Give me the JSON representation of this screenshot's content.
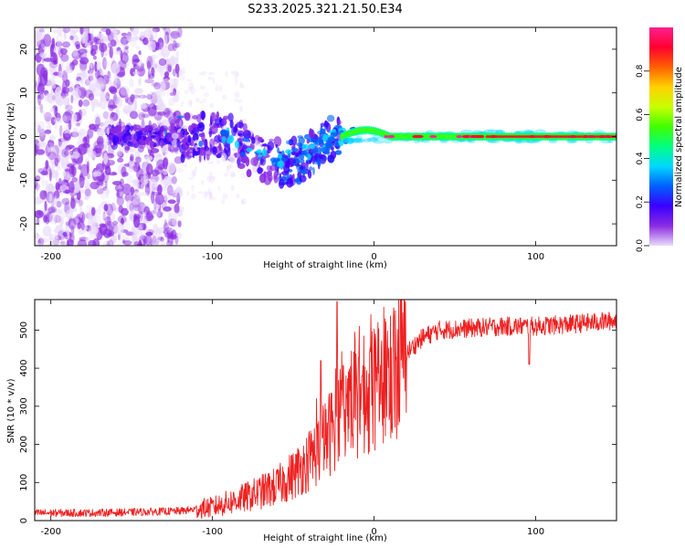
{
  "title": "S233.2025.321.21.50.E34",
  "chart_data": [
    {
      "type": "heatmap",
      "name": "spectrogram",
      "xlabel": "Height of straight line (km)",
      "ylabel": "Frequency (Hz)",
      "xlim": [
        -210,
        150
      ],
      "ylim": [
        -25,
        25
      ],
      "xticks": [
        -200,
        -100,
        0,
        100
      ],
      "xtick_labels": [
        "-200",
        "-100",
        "0",
        "100"
      ],
      "yticks": [
        -20,
        -10,
        0,
        10,
        20
      ],
      "ytick_labels": [
        "-20",
        "-10",
        "0",
        "10",
        "20"
      ],
      "colorbar": {
        "label": "Normalized spectral amplitude",
        "range": [
          0,
          1
        ],
        "ticks": [
          0.0,
          0.2,
          0.4,
          0.6,
          0.8
        ],
        "tick_labels": [
          "0.0",
          "0.2",
          "0.4",
          "0.6",
          "0.8"
        ],
        "colors": [
          "#e9dbfa",
          "#8a2be2",
          "#3a00ff",
          "#0060ff",
          "#00d8ff",
          "#00ff80",
          "#40ff00",
          "#c8ff00",
          "#ffd000",
          "#ff6000",
          "#ff0030",
          "#ff2090"
        ]
      },
      "features": {
        "noise_region_x": [
          -210,
          -120
        ],
        "transition_x": [
          -120,
          -20
        ],
        "signal_line_x": [
          -20,
          150
        ],
        "signal_center_freq": 0,
        "signal_band_halfwidth": 1
      }
    },
    {
      "type": "line",
      "name": "snr",
      "xlabel": "Height of straight line (km)",
      "ylabel": "SNR (10 * v/v)",
      "xlim": [
        -210,
        150
      ],
      "ylim": [
        0,
        580
      ],
      "xticks": [
        -200,
        -100,
        0,
        100
      ],
      "xtick_labels": [
        "-200",
        "-100",
        "0",
        "100"
      ],
      "yticks": [
        0,
        100,
        200,
        300,
        400,
        500
      ],
      "ytick_labels": [
        "0",
        "100",
        "200",
        "300",
        "400",
        "500"
      ],
      "line_color": "#ee2020",
      "trend": {
        "x": [
          -210,
          -180,
          -150,
          -120,
          -100,
          -80,
          -60,
          -50,
          -40,
          -30,
          -25,
          -20,
          -10,
          0,
          10,
          20,
          30,
          40,
          60,
          80,
          100,
          120,
          150
        ],
        "y": [
          20,
          20,
          22,
          25,
          35,
          60,
          90,
          120,
          160,
          210,
          250,
          300,
          320,
          340,
          390,
          440,
          480,
          500,
          505,
          510,
          510,
          515,
          525
        ]
      },
      "spikes": [
        {
          "x": -33,
          "y": 420
        },
        {
          "x": -23,
          "y": 575
        },
        {
          "x": 96,
          "y": 410
        }
      ]
    }
  ]
}
